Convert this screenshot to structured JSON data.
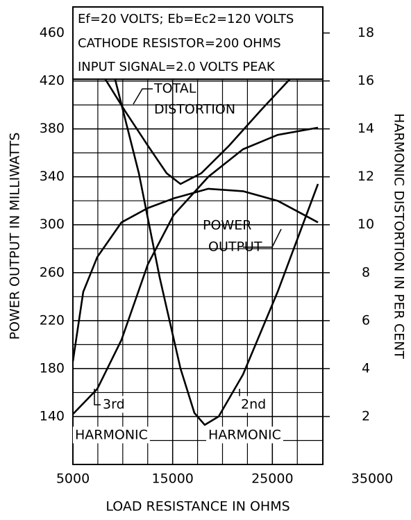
{
  "chart_data": {
    "type": "line",
    "annotations": [
      "Ef=20 VOLTS; Eb=Ec2=120 VOLTS",
      "CATHODE RESISTOR=200 OHMS",
      "INPUT SIGNAL=2.0 VOLTS PEAK"
    ],
    "xlabel": "LOAD RESISTANCE IN OHMS",
    "ylabel": "POWER OUTPUT IN MILLIWATTS",
    "y2label": "HARMONIC DISTORTION IN PER CENT",
    "xlim": [
      5000,
      35000
    ],
    "xticks": [
      5000,
      15000,
      25000,
      35000
    ],
    "ylim": [
      100,
      480
    ],
    "yticks": [
      140,
      180,
      220,
      260,
      300,
      340,
      380,
      420,
      460
    ],
    "y2lim": [
      0,
      19
    ],
    "y2ticks": [
      2,
      4,
      6,
      8,
      10,
      12,
      14,
      16,
      18
    ],
    "grid": true,
    "series": [
      {
        "label_lines": [
          "POWER",
          "OUTPUT"
        ],
        "color": "#000000",
        "axis": "y",
        "x": [
          5000,
          6040,
          7440,
          9870,
          12520,
          15090,
          18570,
          22050,
          25530,
          29570
        ],
        "values": [
          186,
          244,
          273,
          302,
          314,
          322,
          330,
          328,
          320,
          302
        ]
      },
      {
        "label_lines": [
          "TOTAL",
          "DISTORTION"
        ],
        "color": "#000000",
        "axis": "y2",
        "x": [
          8130,
          10220,
          12520,
          14400,
          15790,
          17880,
          20660,
          23790,
          26920
        ],
        "values": [
          16.15,
          14.75,
          13.3,
          12.15,
          11.7,
          12.15,
          13.3,
          14.75,
          16.15
        ]
      },
      {
        "label_lines": [
          "2nd",
          "HARMONIC"
        ],
        "color": "#000000",
        "axis": "y2",
        "x": [
          9180,
          11610,
          13700,
          15790,
          17180,
          18220,
          19620,
          22050,
          25530,
          29570
        ],
        "values": [
          16.15,
          12.15,
          7.8,
          4.0,
          2.15,
          1.65,
          2.0,
          3.75,
          7.2,
          11.7
        ]
      },
      {
        "label_lines": [
          "3rd",
          "HARMONIC"
        ],
        "color": "#000000",
        "axis": "y2",
        "x": [
          5000,
          7440,
          9870,
          12520,
          15090,
          18570,
          22050,
          25530,
          29570
        ],
        "values": [
          2.1,
          3.15,
          5.2,
          8.35,
          10.4,
          12.0,
          13.15,
          13.75,
          14.05
        ]
      }
    ]
  }
}
